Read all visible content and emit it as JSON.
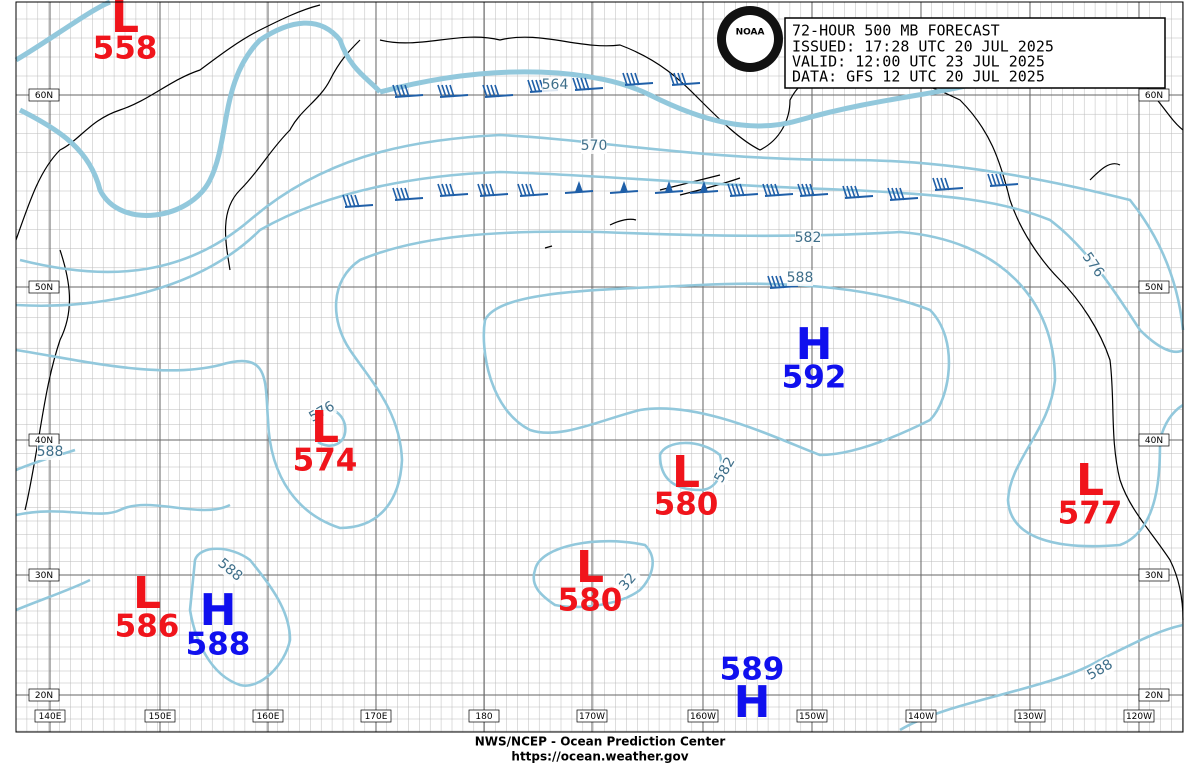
{
  "header": {
    "logo": "NOAA",
    "lines": [
      "72-HOUR 500 MB FORECAST",
      "ISSUED: 17:28 UTC 20 JUL 2025",
      "VALID:  12:00 UTC 23 JUL 2025",
      "DATA:   GFS 12 UTC 20 JUL 2025"
    ]
  },
  "footer": {
    "agency": "NWS/NCEP - Ocean Prediction Center",
    "url": "https://ocean.weather.gov"
  },
  "latitudes": [
    "60N",
    "50N",
    "40N",
    "30N",
    "20N"
  ],
  "longitudes": [
    "140E",
    "150E",
    "160E",
    "170E",
    "180",
    "170W",
    "160W",
    "150W",
    "140W",
    "130W",
    "120W"
  ],
  "centers": [
    {
      "symbol": "L",
      "value": "558"
    },
    {
      "symbol": "L",
      "value": "574"
    },
    {
      "symbol": "L",
      "value": "580"
    },
    {
      "symbol": "L",
      "value": "577"
    },
    {
      "symbol": "L",
      "value": "586"
    },
    {
      "symbol": "H",
      "value": "588"
    },
    {
      "symbol": "L",
      "value": "580"
    },
    {
      "symbol": "H",
      "value": "592"
    },
    {
      "symbol": "H",
      "value": "589"
    }
  ],
  "contour_labels": [
    "564",
    "570",
    "582",
    "588",
    "576",
    "576",
    "588",
    "582",
    "588",
    "32",
    "588"
  ]
}
